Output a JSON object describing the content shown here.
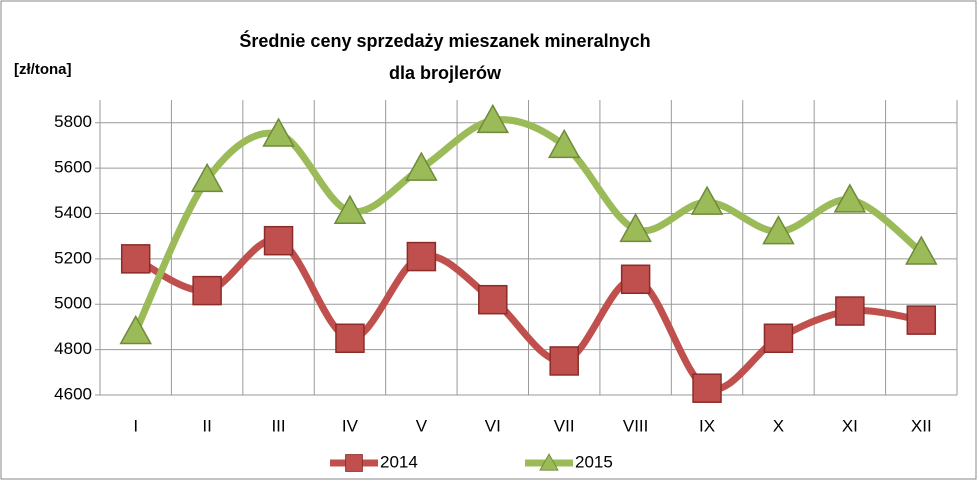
{
  "chart_data": {
    "type": "line",
    "title": "Średnie ceny sprzedaży mieszanek mineralnych dla brojlerów",
    "y_label": "[zł/tona]",
    "categories": [
      "I",
      "II",
      "III",
      "IV",
      "V",
      "VI",
      "VII",
      "VIII",
      "IX",
      "X",
      "XI",
      "XII"
    ],
    "series": [
      {
        "name": "2014",
        "color": "#c0504d",
        "marker": "square",
        "values": [
          5200,
          5060,
          5280,
          4850,
          5210,
          5020,
          4750,
          5110,
          4630,
          4850,
          4970,
          4930
        ]
      },
      {
        "name": "2015",
        "color": "#9bbb59",
        "marker": "triangle",
        "values": [
          4880,
          5550,
          5750,
          5410,
          5600,
          5810,
          5700,
          5330,
          5450,
          5320,
          5460,
          5230
        ]
      }
    ],
    "ylim": [
      4600,
      5900
    ],
    "yticks": [
      4600,
      4800,
      5000,
      5200,
      5400,
      5600,
      5800
    ],
    "grid": true,
    "smooth": true,
    "legend": "bottom"
  }
}
